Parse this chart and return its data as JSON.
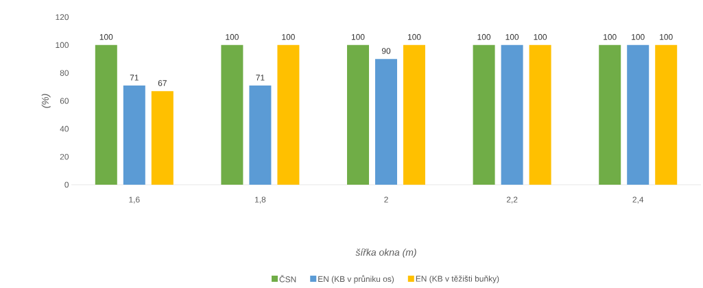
{
  "chart_data": {
    "type": "bar",
    "xlabel": "šířka okna (m)",
    "ylabel": "(%)",
    "categories": [
      "1,6",
      "1,8",
      "2",
      "2,2",
      "2,4"
    ],
    "series": [
      {
        "name": "ČSN",
        "color": "#70ad47",
        "values": [
          100,
          100,
          100,
          100,
          100
        ]
      },
      {
        "name": "EN (KB v průniku os)",
        "color": "#5b9bd5",
        "values": [
          71,
          71,
          90,
          100,
          100
        ]
      },
      {
        "name": "EN (KB v těžišti buňky)",
        "color": "#ffc000",
        "values": [
          67,
          100,
          100,
          100,
          100
        ]
      }
    ],
    "ylim": [
      0,
      120
    ],
    "yticks": [
      0,
      20,
      40,
      60,
      80,
      100,
      120
    ],
    "data_labels": true,
    "grid": false,
    "legend": "bottom"
  }
}
